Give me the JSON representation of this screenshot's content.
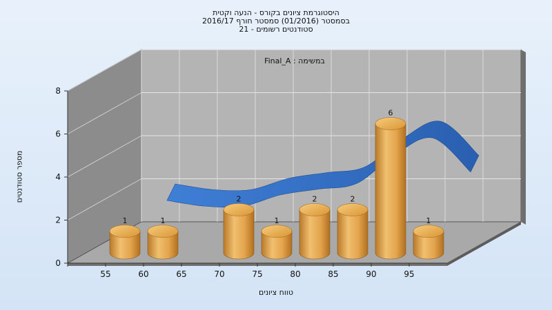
{
  "title_lines": [
    "היסטוגרמת ציונים בקורס - הנעה וקטית",
    "בסמסטר  (01/2016)  סמסטר חורף 2016/17",
    "סטודנטים רשומים - 21"
  ],
  "chart_data": {
    "type": "bar",
    "categories": [
      "55",
      "60",
      "65",
      "70",
      "75",
      "80",
      "85",
      "90",
      "95"
    ],
    "values": [
      1,
      1,
      0,
      2,
      1,
      2,
      2,
      6,
      1
    ],
    "ylim": [
      0,
      8
    ],
    "yticks": [
      0,
      2,
      4,
      6,
      8
    ],
    "xlabel": "טווח ציונים",
    "ylabel": "מספר סטודנטים",
    "annotation": "Final_A : במשימה",
    "grid": true,
    "curve": "smoothed distribution ribbon",
    "colors": {
      "bar": "#e8a64a",
      "ribbon": "#2f6bc0",
      "wall": "#8a8a8a",
      "back": "#b3b3b3"
    }
  }
}
